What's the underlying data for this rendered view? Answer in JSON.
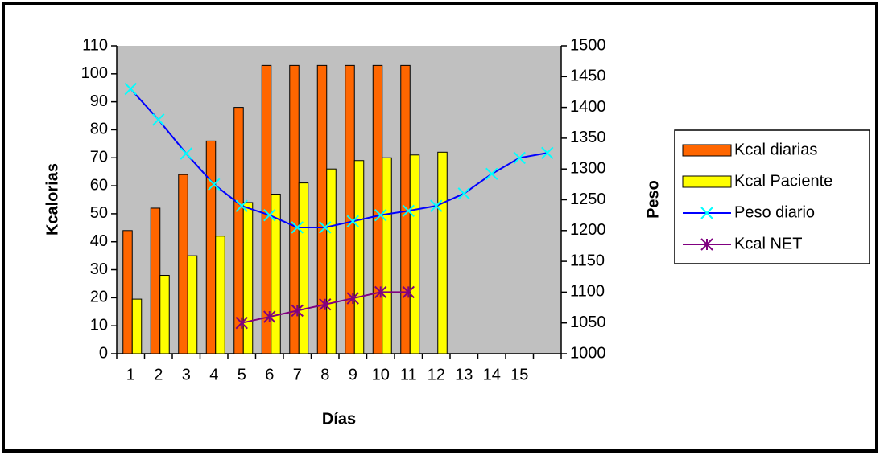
{
  "chart_data": {
    "type": "bar-line",
    "categories": [
      "1",
      "2",
      "3",
      "4",
      "5",
      "6",
      "7",
      "8",
      "9",
      "10",
      "11",
      "12",
      "13",
      "14",
      "15",
      null
    ],
    "series": [
      {
        "name": "Kcal diarias",
        "type": "bar",
        "color": "#ff6600",
        "values": [
          44,
          52,
          64,
          76,
          88,
          103,
          103,
          103,
          103,
          103,
          103,
          null,
          null,
          null,
          null,
          null
        ]
      },
      {
        "name": "Kcal Paciente",
        "type": "bar",
        "color": "#ffff00",
        "values": [
          19.5,
          28,
          35,
          42,
          54,
          57,
          61,
          66,
          69,
          70,
          71,
          72,
          null,
          null,
          null,
          null
        ]
      },
      {
        "name": "Peso diario",
        "type": "line",
        "axis": "y2",
        "color": "#0000ff",
        "marker": "x",
        "marker_color": "#00ffff",
        "values": [
          1430,
          1380,
          1325,
          1275,
          1240,
          1225,
          1205,
          1205,
          1215,
          1225,
          1232,
          1240,
          1260,
          1292,
          1318,
          1326
        ]
      },
      {
        "name": "Kcal NET",
        "type": "line",
        "axis": "y2",
        "color": "#800080",
        "marker": "star",
        "marker_color": "#800080",
        "values": [
          null,
          null,
          null,
          null,
          1050,
          1060,
          1070,
          1080,
          1090,
          1100,
          1100,
          null,
          null,
          null,
          null,
          null
        ]
      }
    ],
    "ylabel": "Kcalorias",
    "y2label": "Peso",
    "xlabel": "Días",
    "ylim": [
      0,
      110
    ],
    "yticks": [
      0,
      10,
      20,
      30,
      40,
      50,
      60,
      70,
      80,
      90,
      100,
      110
    ],
    "y2lim": [
      1000,
      1500
    ],
    "y2ticks": [
      1000,
      1050,
      1100,
      1150,
      1200,
      1250,
      1300,
      1350,
      1400,
      1450,
      1500
    ],
    "legend": "right",
    "plot_background": "#c0c0c0"
  }
}
